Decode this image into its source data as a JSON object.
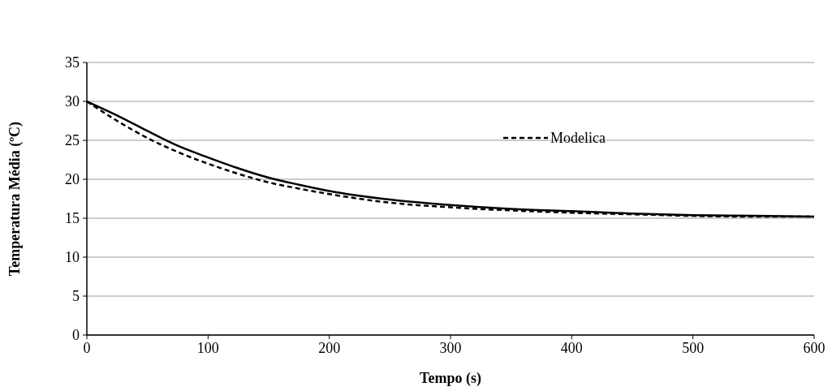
{
  "chart_data": {
    "type": "line",
    "xlabel": "Tempo (s)",
    "ylabel": "Temperatura Média (ºC)",
    "xlim": [
      0,
      600
    ],
    "xticks": [
      0,
      100,
      200,
      300,
      400,
      500,
      600
    ],
    "ylim": [
      0,
      35
    ],
    "yticks": [
      0,
      5,
      10,
      15,
      20,
      25,
      30,
      35
    ],
    "grid": "y",
    "legend": "top right",
    "series": [
      {
        "name": "Modelica",
        "color": "#000000",
        "line_style": "dashed",
        "x": [
          0,
          25,
          50,
          75,
          100,
          125,
          150,
          175,
          200,
          250,
          300,
          350,
          400,
          450,
          500,
          550,
          600
        ],
        "values": [
          30,
          27.5,
          25.3,
          23.5,
          22.0,
          20.7,
          19.6,
          18.8,
          18.1,
          17.0,
          16.4,
          16.0,
          15.7,
          15.5,
          15.3,
          15.2,
          15.2
        ]
      },
      {
        "color": "#000000",
        "line_style": "solid",
        "x": [
          0,
          25,
          50,
          75,
          100,
          125,
          150,
          175,
          200,
          250,
          300,
          350,
          400,
          450,
          500,
          550,
          600
        ],
        "values": [
          30,
          28.2,
          26.2,
          24.3,
          22.8,
          21.4,
          20.2,
          19.3,
          18.5,
          17.4,
          16.7,
          16.2,
          15.9,
          15.6,
          15.4,
          15.3,
          15.2
        ]
      }
    ]
  }
}
